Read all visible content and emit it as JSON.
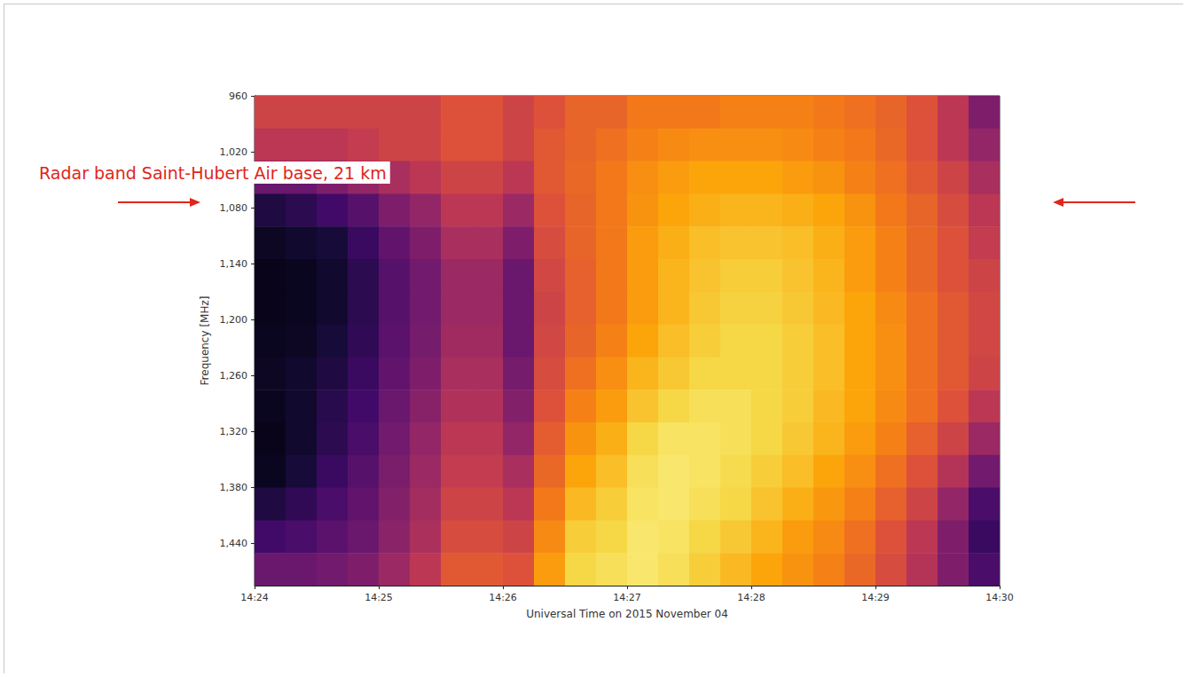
{
  "chart_data": {
    "type": "heatmap",
    "annotation": "Radar band Saint-Hubert Air base, 21 km",
    "x_label": "Universal Time on 2015 November 04",
    "y_label": "Frequency [MHz]",
    "xlim": [
      864,
      870
    ],
    "xticks": [
      {
        "value": 864,
        "label": "14:24"
      },
      {
        "value": 865,
        "label": "14:25"
      },
      {
        "value": 866,
        "label": "14:26"
      },
      {
        "value": 867,
        "label": "14:27"
      },
      {
        "value": 868,
        "label": "14:28"
      },
      {
        "value": 869,
        "label": "14:29"
      },
      {
        "value": 870,
        "label": "14:30"
      }
    ],
    "ylim": [
      960,
      1485
    ],
    "yticks": [
      960,
      1020,
      1080,
      1140,
      1200,
      1260,
      1320,
      1380,
      1440
    ],
    "time_edges": [
      864,
      864.25,
      864.5,
      864.75,
      865,
      865.25,
      865.5,
      865.75,
      866,
      866.25,
      866.5,
      866.75,
      867,
      867.25,
      867.5,
      867.75,
      868,
      868.25,
      868.5,
      868.75,
      869,
      869.25,
      869.5,
      869.75,
      870
    ],
    "freq_edges": [
      960,
      995,
      1030,
      1065,
      1100,
      1135,
      1170,
      1205,
      1240,
      1275,
      1310,
      1345,
      1380,
      1415,
      1450,
      1485
    ],
    "color_range": [
      0,
      1
    ],
    "cells": [
      [
        0.55,
        0.55,
        0.55,
        0.55,
        0.55,
        0.55,
        0.6,
        0.6,
        0.55,
        0.6,
        0.65,
        0.65,
        0.7,
        0.7,
        0.7,
        0.72,
        0.72,
        0.72,
        0.7,
        0.68,
        0.65,
        0.6,
        0.5,
        0.35
      ],
      [
        0.5,
        0.5,
        0.5,
        0.52,
        0.55,
        0.55,
        0.6,
        0.6,
        0.55,
        0.62,
        0.65,
        0.68,
        0.72,
        0.74,
        0.75,
        0.75,
        0.75,
        0.74,
        0.72,
        0.7,
        0.66,
        0.6,
        0.5,
        0.4
      ],
      [
        0.3,
        0.3,
        0.35,
        0.4,
        0.45,
        0.5,
        0.55,
        0.55,
        0.5,
        0.62,
        0.66,
        0.7,
        0.75,
        0.78,
        0.8,
        0.8,
        0.8,
        0.78,
        0.76,
        0.72,
        0.68,
        0.62,
        0.55,
        0.45
      ],
      [
        0.12,
        0.15,
        0.2,
        0.25,
        0.35,
        0.4,
        0.5,
        0.5,
        0.42,
        0.6,
        0.65,
        0.7,
        0.76,
        0.8,
        0.82,
        0.83,
        0.83,
        0.82,
        0.8,
        0.76,
        0.7,
        0.65,
        0.58,
        0.5
      ],
      [
        0.06,
        0.08,
        0.1,
        0.18,
        0.28,
        0.35,
        0.45,
        0.45,
        0.35,
        0.58,
        0.65,
        0.7,
        0.78,
        0.82,
        0.85,
        0.86,
        0.86,
        0.85,
        0.82,
        0.78,
        0.72,
        0.66,
        0.6,
        0.52
      ],
      [
        0.04,
        0.05,
        0.08,
        0.15,
        0.25,
        0.32,
        0.42,
        0.42,
        0.3,
        0.56,
        0.64,
        0.7,
        0.78,
        0.83,
        0.86,
        0.88,
        0.88,
        0.86,
        0.83,
        0.78,
        0.72,
        0.66,
        0.6,
        0.55
      ],
      [
        0.04,
        0.05,
        0.08,
        0.15,
        0.25,
        0.32,
        0.42,
        0.42,
        0.3,
        0.55,
        0.64,
        0.7,
        0.78,
        0.83,
        0.87,
        0.89,
        0.89,
        0.87,
        0.84,
        0.8,
        0.74,
        0.68,
        0.62,
        0.56
      ],
      [
        0.05,
        0.06,
        0.1,
        0.16,
        0.26,
        0.33,
        0.43,
        0.43,
        0.3,
        0.56,
        0.65,
        0.72,
        0.8,
        0.85,
        0.88,
        0.9,
        0.9,
        0.88,
        0.85,
        0.8,
        0.75,
        0.68,
        0.62,
        0.56
      ],
      [
        0.06,
        0.08,
        0.12,
        0.18,
        0.28,
        0.35,
        0.45,
        0.45,
        0.33,
        0.58,
        0.68,
        0.75,
        0.83,
        0.87,
        0.9,
        0.9,
        0.9,
        0.88,
        0.85,
        0.8,
        0.75,
        0.68,
        0.62,
        0.55
      ],
      [
        0.05,
        0.08,
        0.14,
        0.2,
        0.3,
        0.37,
        0.47,
        0.47,
        0.36,
        0.6,
        0.72,
        0.78,
        0.86,
        0.9,
        0.92,
        0.92,
        0.9,
        0.88,
        0.84,
        0.8,
        0.74,
        0.68,
        0.6,
        0.5
      ],
      [
        0.04,
        0.08,
        0.15,
        0.22,
        0.32,
        0.4,
        0.5,
        0.5,
        0.4,
        0.63,
        0.76,
        0.82,
        0.9,
        0.93,
        0.93,
        0.92,
        0.9,
        0.87,
        0.83,
        0.78,
        0.72,
        0.64,
        0.55,
        0.42
      ],
      [
        0.05,
        0.1,
        0.18,
        0.25,
        0.34,
        0.42,
        0.52,
        0.52,
        0.45,
        0.66,
        0.8,
        0.85,
        0.92,
        0.94,
        0.93,
        0.91,
        0.88,
        0.85,
        0.8,
        0.75,
        0.68,
        0.6,
        0.48,
        0.32
      ],
      [
        0.12,
        0.16,
        0.22,
        0.28,
        0.36,
        0.44,
        0.55,
        0.55,
        0.5,
        0.7,
        0.84,
        0.88,
        0.93,
        0.94,
        0.92,
        0.9,
        0.86,
        0.82,
        0.77,
        0.72,
        0.64,
        0.55,
        0.4,
        0.22
      ],
      [
        0.2,
        0.22,
        0.26,
        0.3,
        0.38,
        0.46,
        0.58,
        0.58,
        0.55,
        0.74,
        0.88,
        0.9,
        0.94,
        0.93,
        0.9,
        0.87,
        0.83,
        0.78,
        0.74,
        0.68,
        0.6,
        0.5,
        0.35,
        0.18
      ],
      [
        0.3,
        0.3,
        0.32,
        0.35,
        0.42,
        0.5,
        0.62,
        0.62,
        0.6,
        0.78,
        0.9,
        0.92,
        0.94,
        0.92,
        0.88,
        0.84,
        0.8,
        0.76,
        0.72,
        0.66,
        0.58,
        0.48,
        0.35,
        0.22
      ]
    ]
  }
}
